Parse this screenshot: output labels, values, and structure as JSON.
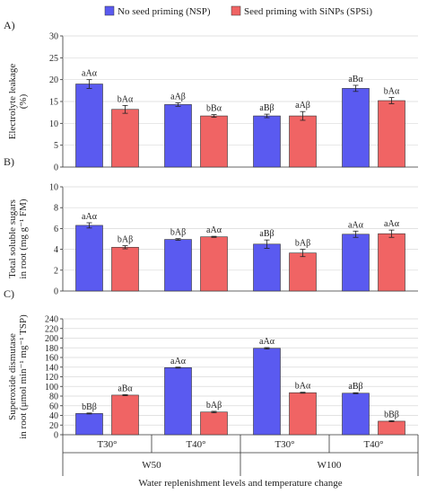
{
  "legend": {
    "items": [
      {
        "label": "No seed priming (NSP)",
        "color": "#5a5af0"
      },
      {
        "label": "Seed priming with SiNPs (SPSi)",
        "color": "#f06464"
      }
    ]
  },
  "x_axis": {
    "categories": [
      "T30°",
      "T40°",
      "T30°",
      "T40°"
    ],
    "groups": [
      "W50",
      "W100"
    ],
    "title": "Water replenishment levels and temperature change"
  },
  "chart_data": [
    {
      "type": "bar",
      "panel": "A)",
      "ylabel": [
        "Electrolyte leakage",
        "(%)"
      ],
      "ylim": [
        0,
        30
      ],
      "yticks": [
        0,
        5,
        10,
        15,
        20,
        25,
        30
      ],
      "categories": [
        "T30°",
        "T40°",
        "T30°",
        "T40°"
      ],
      "series": [
        {
          "name": "No seed priming (NSP)",
          "values": [
            19.0,
            14.3,
            11.7,
            18.0
          ],
          "errors": [
            1.0,
            0.4,
            0.4,
            0.7
          ],
          "labels": [
            "aAα",
            "aAβ",
            "aBβ",
            "aBα"
          ]
        },
        {
          "name": "Seed priming with SiNPs (SPSi)",
          "values": [
            13.2,
            11.7,
            11.7,
            15.2
          ],
          "errors": [
            0.9,
            0.3,
            1.0,
            0.7
          ],
          "labels": [
            "bAα",
            "bBα",
            "aAβ",
            "bAα"
          ]
        }
      ]
    },
    {
      "type": "bar",
      "panel": "B)",
      "ylabel": [
        "Total soluble sugars",
        "in root (mg g⁻¹ FM)"
      ],
      "ylim": [
        0,
        10
      ],
      "yticks": [
        0,
        2,
        4,
        6,
        8,
        10
      ],
      "categories": [
        "T30°",
        "T40°",
        "T30°",
        "T40°"
      ],
      "series": [
        {
          "name": "No seed priming (NSP)",
          "values": [
            6.3,
            4.95,
            4.5,
            5.45
          ],
          "errors": [
            0.25,
            0.08,
            0.4,
            0.3
          ],
          "labels": [
            "aAα",
            "bAβ",
            "aBβ",
            "aAα"
          ]
        },
        {
          "name": "Seed priming with SiNPs (SPSi)",
          "values": [
            4.2,
            5.2,
            3.65,
            5.5
          ],
          "errors": [
            0.15,
            0.05,
            0.35,
            0.35
          ],
          "labels": [
            "bAβ",
            "aAα",
            "bAβ",
            "aAα"
          ]
        }
      ]
    },
    {
      "type": "bar",
      "panel": "C)",
      "ylabel": [
        "Superoxide dismutase",
        "in root (μmol min⁻¹ mg⁻¹ TSP)"
      ],
      "ylim": [
        0,
        240
      ],
      "yticks": [
        0,
        20,
        40,
        60,
        80,
        100,
        120,
        140,
        160,
        180,
        200,
        220,
        240
      ],
      "categories": [
        "T30°",
        "T40°",
        "T30°",
        "T40°"
      ],
      "series": [
        {
          "name": "No seed priming (NSP)",
          "values": [
            44,
            139,
            179,
            86
          ],
          "errors": [
            1.0,
            1.0,
            1.5,
            1.0
          ],
          "labels": [
            "bBβ",
            "aAα",
            "aAα",
            "aBβ"
          ]
        },
        {
          "name": "Seed priming with SiNPs (SPSi)",
          "values": [
            82,
            47,
            87,
            28
          ],
          "errors": [
            1.0,
            1.5,
            1.0,
            1.0
          ],
          "labels": [
            "aBα",
            "bAβ",
            "bAα",
            "bBβ"
          ]
        }
      ]
    }
  ]
}
